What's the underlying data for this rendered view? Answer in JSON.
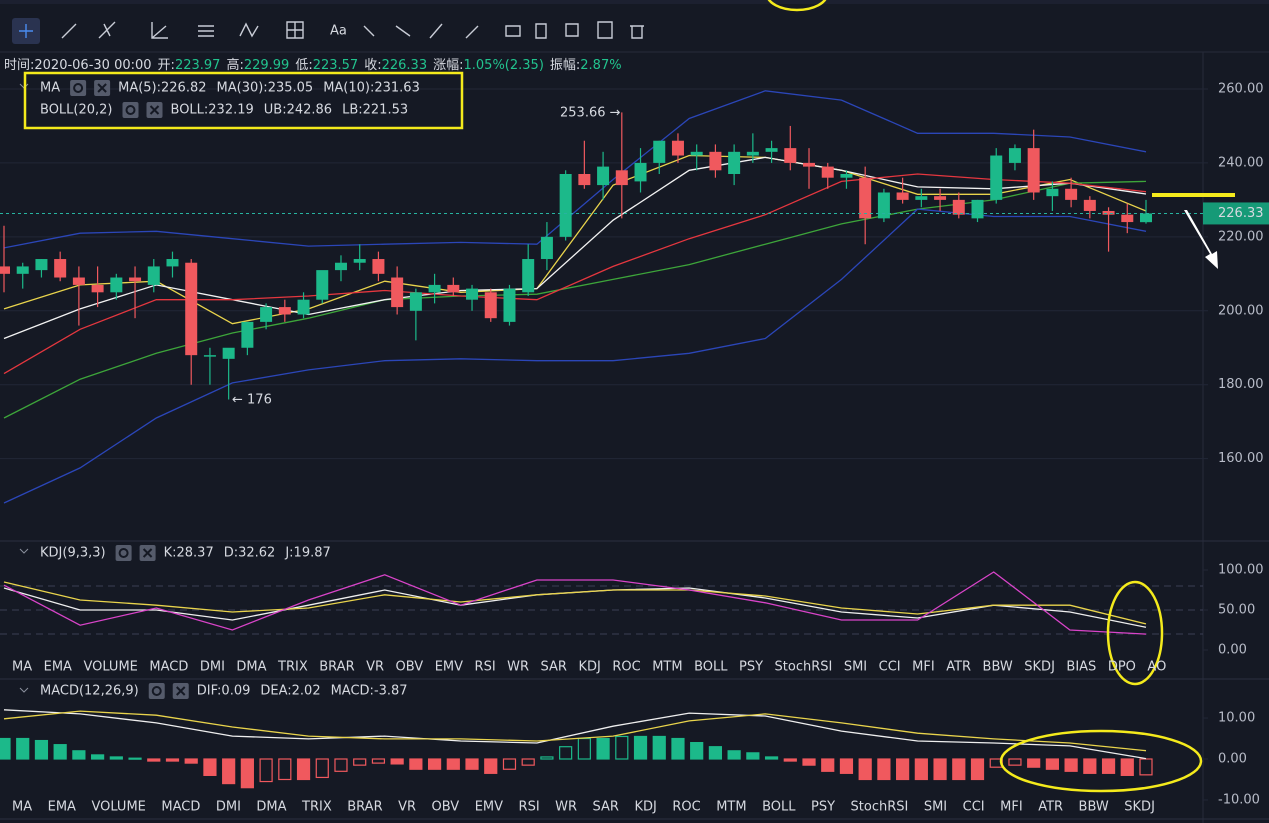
{
  "toolbar": {
    "text_tool": "Aa"
  },
  "info": [
    {
      "label": "时间:",
      "value": "2020-06-30 00:00"
    },
    {
      "label": "开:",
      "value": "223.97"
    },
    {
      "label": "高:",
      "value": "229.99"
    },
    {
      "label": "低:",
      "value": "223.57"
    },
    {
      "label": "收:",
      "value": "226.33"
    },
    {
      "label": "涨幅:",
      "value": "1.05%(2.35)"
    },
    {
      "label": "振幅:",
      "value": "2.87%"
    }
  ],
  "chart_data": [
    {
      "type": "candlestick",
      "legend_groups": [
        "MA",
        "BOLL(20,2)"
      ],
      "up_color": "#1cb98a",
      "down_color": "#f0595e",
      "open": [
        212,
        210,
        211,
        214,
        209,
        207,
        205,
        209,
        207,
        212,
        213,
        188,
        187,
        190,
        197,
        201,
        199,
        203,
        211,
        213,
        214,
        209,
        200,
        205,
        207,
        203,
        205,
        197,
        205,
        214,
        220,
        237,
        234,
        238,
        235,
        240,
        246,
        242,
        243,
        237,
        242,
        243,
        244,
        240,
        239,
        236,
        236,
        225,
        232,
        230,
        231,
        230,
        225,
        230,
        240,
        244,
        231,
        233,
        230,
        227,
        226,
        223.97
      ],
      "high": [
        223,
        213,
        214,
        216,
        212,
        212,
        210,
        212,
        214,
        216,
        214,
        190,
        189,
        196,
        202,
        203,
        205,
        210,
        215,
        218,
        216,
        212,
        206,
        210,
        209,
        207,
        206,
        207,
        218,
        224,
        238,
        246,
        243,
        253.66,
        244,
        246,
        248,
        245,
        245,
        245,
        248,
        246,
        250,
        244,
        240,
        238,
        239,
        233,
        236,
        233,
        233,
        232,
        230,
        244,
        245,
        249,
        235,
        236,
        231,
        228,
        229,
        229.99
      ],
      "low": [
        205,
        206,
        209,
        208,
        196,
        201,
        203,
        198,
        205,
        209,
        180,
        180,
        176,
        188,
        195,
        197,
        198,
        202,
        208,
        211,
        208,
        199,
        192,
        202,
        204,
        200,
        197,
        196,
        204,
        211,
        219,
        233,
        230,
        225,
        232,
        237,
        240,
        238,
        236,
        234,
        240,
        240,
        238,
        233,
        233,
        233,
        218,
        224,
        229,
        228,
        227,
        225,
        224,
        229,
        238,
        230,
        227,
        228,
        225,
        216,
        221,
        223.57
      ],
      "close": [
        210,
        212,
        214,
        209,
        207,
        205,
        209,
        208,
        212,
        214,
        188,
        188,
        190,
        197,
        201,
        199,
        203,
        211,
        213,
        214,
        210,
        201,
        205,
        207,
        205,
        206,
        198,
        206,
        214,
        220,
        237,
        234,
        239,
        234,
        240,
        246,
        242,
        243,
        238,
        243,
        243,
        244,
        240,
        239,
        236,
        237,
        225,
        232,
        230,
        231,
        230,
        226,
        230,
        242,
        244,
        232,
        233,
        230,
        227,
        226,
        224,
        226.33
      ],
      "series": [
        {
          "label": "MA(5):226.82",
          "color": "#e9d44c",
          "values": [
            200.5,
            207,
            208,
            196.5,
            200.5,
            208,
            205,
            206,
            234,
            242,
            241.5,
            238,
            231.5,
            231.5,
            235.5,
            227
          ]
        },
        {
          "label": "MA(30):235.05",
          "color": "#3da53a",
          "values": [
            171,
            181.5,
            188.5,
            194,
            198,
            203,
            204,
            204.5,
            208.5,
            212.5,
            218,
            223.5,
            227.5,
            230,
            234.5,
            235
          ]
        },
        {
          "label": "MA(10):231.63",
          "color": "#f2f2f2",
          "values": [
            192.5,
            200.5,
            207,
            203,
            199,
            203,
            205.5,
            206,
            224.5,
            238,
            241.5,
            238,
            233.5,
            233,
            234.5,
            231.6
          ]
        },
        {
          "label": "BOLL:232.19",
          "color": "#e5373f",
          "values": [
            183,
            195,
            203,
            203,
            204,
            205.5,
            204,
            203,
            212,
            219.5,
            226,
            235,
            237,
            235.5,
            234.5,
            232.2
          ]
        },
        {
          "label": "UB:242.86",
          "color": "#2b46b8",
          "values": [
            217,
            221,
            221.5,
            219.5,
            217.5,
            218,
            218.5,
            218,
            235.5,
            252,
            259.5,
            257,
            248,
            248,
            247,
            243
          ]
        },
        {
          "label": "LB:221.53",
          "color": "#2b46b8",
          "values": [
            148,
            157.5,
            171,
            180.5,
            184,
            186.5,
            187,
            186.5,
            186.5,
            188.5,
            192.5,
            208.5,
            227.5,
            225.5,
            225.5,
            221.5
          ]
        }
      ],
      "ylim": [
        138,
        270
      ],
      "yticks": [
        {
          "value": 160,
          "label": "160.00"
        },
        {
          "value": 180,
          "label": "180.00"
        },
        {
          "value": 200,
          "label": "200.00"
        },
        {
          "value": 220,
          "label": "220.00"
        },
        {
          "value": 240,
          "label": "240.00"
        },
        {
          "value": 260,
          "label": "260.00"
        }
      ],
      "last_price": {
        "value": 226.33,
        "label": "226.33"
      },
      "annotations": [
        "253.66 →",
        "← 176"
      ]
    },
    {
      "type": "line",
      "title": "KDJ(9,3,3)",
      "series": [
        {
          "label": "K:28.37",
          "color": "#eeeeee",
          "values": [
            77.5,
            50,
            50,
            37.5,
            56,
            75,
            56,
            69,
            75,
            77.5,
            65,
            47.5,
            40,
            56,
            47.5,
            28.37
          ]
        },
        {
          "label": "D:32.62",
          "color": "#e9d44c",
          "values": [
            85,
            62.5,
            56,
            47.5,
            52.5,
            69,
            60,
            69,
            75,
            75,
            67.5,
            52.5,
            45,
            56,
            56,
            32.62
          ]
        },
        {
          "label": "J:19.87",
          "color": "#d944c9",
          "values": [
            81,
            31,
            52.5,
            25,
            62.5,
            94,
            56,
            87.5,
            87.5,
            75,
            59,
            37.5,
            37.5,
            97.5,
            25,
            19.87
          ]
        }
      ],
      "ylim": [
        -7.5,
        112.5
      ],
      "yticks": [
        {
          "value": 0,
          "label": "0.00"
        },
        {
          "value": 50,
          "label": "50.00"
        },
        {
          "value": 100,
          "label": "100.00"
        }
      ],
      "levels": [
        20,
        50,
        80
      ]
    },
    {
      "type": "macd",
      "title": "MACD(12,26,9)",
      "series": [
        {
          "label": "DIF:0.09",
          "color": "#eeeeee",
          "values": [
            12,
            11,
            8.8,
            5.6,
            4.9,
            5.6,
            4.4,
            3.9,
            8,
            11.2,
            10.5,
            6.8,
            4.4,
            3.9,
            3.2,
            0.09
          ]
        },
        {
          "label": "DEA:2.02",
          "color": "#e9d44c",
          "values": [
            9.8,
            11.7,
            10.7,
            7.8,
            5.6,
            4.9,
            4.9,
            4.4,
            5.6,
            9.3,
            11,
            8.8,
            6.3,
            4.9,
            3.9,
            2.02
          ]
        }
      ],
      "histogram": {
        "label": "MACD:-3.87",
        "up_color": "#1cb98a",
        "down_color": "#f0595e",
        "values": [
          5,
          5,
          4.5,
          3.5,
          2,
          1,
          0.5,
          0.2,
          -0.5,
          -0.5,
          -1,
          -4,
          -6,
          -7,
          -5.5,
          -5,
          -5,
          -4.5,
          -3,
          -1.5,
          -1,
          -1.2,
          -2.5,
          -2.5,
          -2.5,
          -2.5,
          -3.5,
          -2.5,
          -1.5,
          0.5,
          3,
          5,
          5,
          5.5,
          5.5,
          5.5,
          5,
          4,
          3,
          2,
          1.5,
          0.5,
          -0.5,
          -1.5,
          -3,
          -3.5,
          -5,
          -5,
          -5,
          -5,
          -5,
          -5,
          -5,
          -2,
          -1.5,
          -2,
          -2.5,
          -3,
          -3.5,
          -3.5,
          -4,
          -3.87
        ]
      },
      "ylim": [
        -14.4,
        14.4
      ],
      "yticks": [
        {
          "value": 10,
          "label": "10.00"
        },
        {
          "value": 0,
          "label": "0.00"
        },
        {
          "value": -10,
          "label": "-10.00"
        }
      ]
    }
  ],
  "tabs": [
    {
      "items": [
        "MA",
        "EMA",
        "VOLUME",
        "MACD",
        "DMI",
        "DMA",
        "TRIX",
        "BRAR",
        "VR",
        "OBV",
        "EMV",
        "RSI",
        "WR",
        "SAR",
        "KDJ",
        "ROC",
        "MTM",
        "BOLL",
        "PSY",
        "StochRSI",
        "SMI",
        "CCI",
        "MFI",
        "ATR",
        "BBW",
        "SKDJ",
        "BIAS",
        "DPO",
        "AO"
      ],
      "active": 14,
      "muted": 3
    },
    {
      "items": [
        "MA",
        "EMA",
        "VOLUME",
        "MACD",
        "DMI",
        "DMA",
        "TRIX",
        "BRAR",
        "VR",
        "OBV",
        "EMV",
        "RSI",
        "WR",
        "SAR",
        "KDJ",
        "ROC",
        "MTM",
        "BOLL",
        "PSY",
        "StochRSI",
        "SMI",
        "CCI",
        "MFI",
        "ATR",
        "BBW",
        "SKDJ"
      ],
      "active": 3,
      "muted": 14
    }
  ]
}
